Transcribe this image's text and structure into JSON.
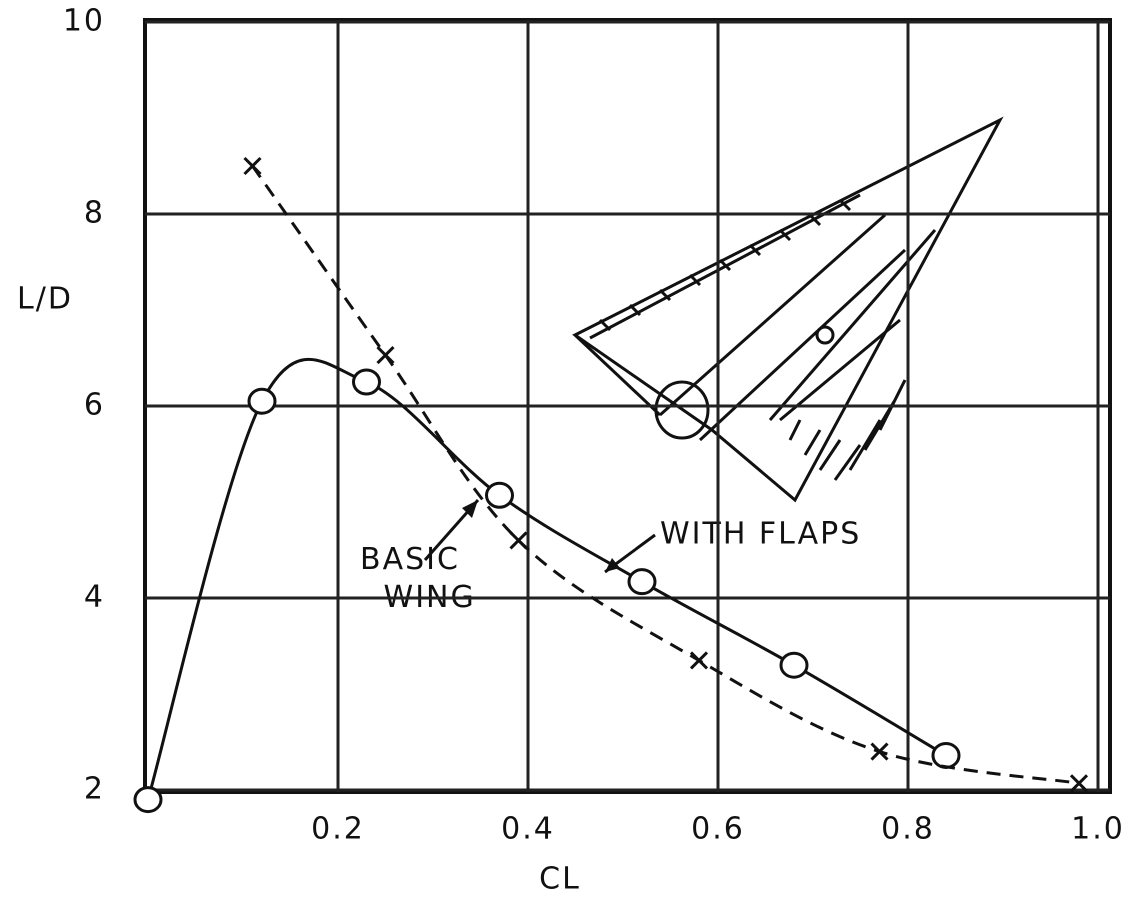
{
  "chart_data": {
    "type": "line",
    "x_label": "CL",
    "y_label": "L/D",
    "xlim": [
      0,
      1.0
    ],
    "ylim": [
      2,
      10
    ],
    "xticks": [
      0.2,
      0.4,
      0.6,
      0.8,
      {
        "value": 1,
        "label": "1.0"
      }
    ],
    "yticks": [
      2,
      4,
      6,
      8,
      10
    ],
    "grid": true,
    "series": [
      {
        "name": "BASIC WING",
        "color": "#111111",
        "dashed": false,
        "marker": "circle",
        "x": [
          0.0,
          0.12,
          0.23,
          0.37,
          0.52,
          0.68,
          0.84
        ],
        "values": [
          1.9,
          6.05,
          6.25,
          5.07,
          4.17,
          3.3,
          2.36
        ]
      },
      {
        "name": "WITH FLAPS",
        "color": "#111111",
        "dashed": true,
        "marker": "cross",
        "x": [
          0.11,
          0.25,
          0.39,
          0.58,
          0.77,
          0.98
        ],
        "values": [
          8.5,
          6.53,
          4.6,
          3.35,
          2.4,
          2.07
        ]
      }
    ]
  }
}
